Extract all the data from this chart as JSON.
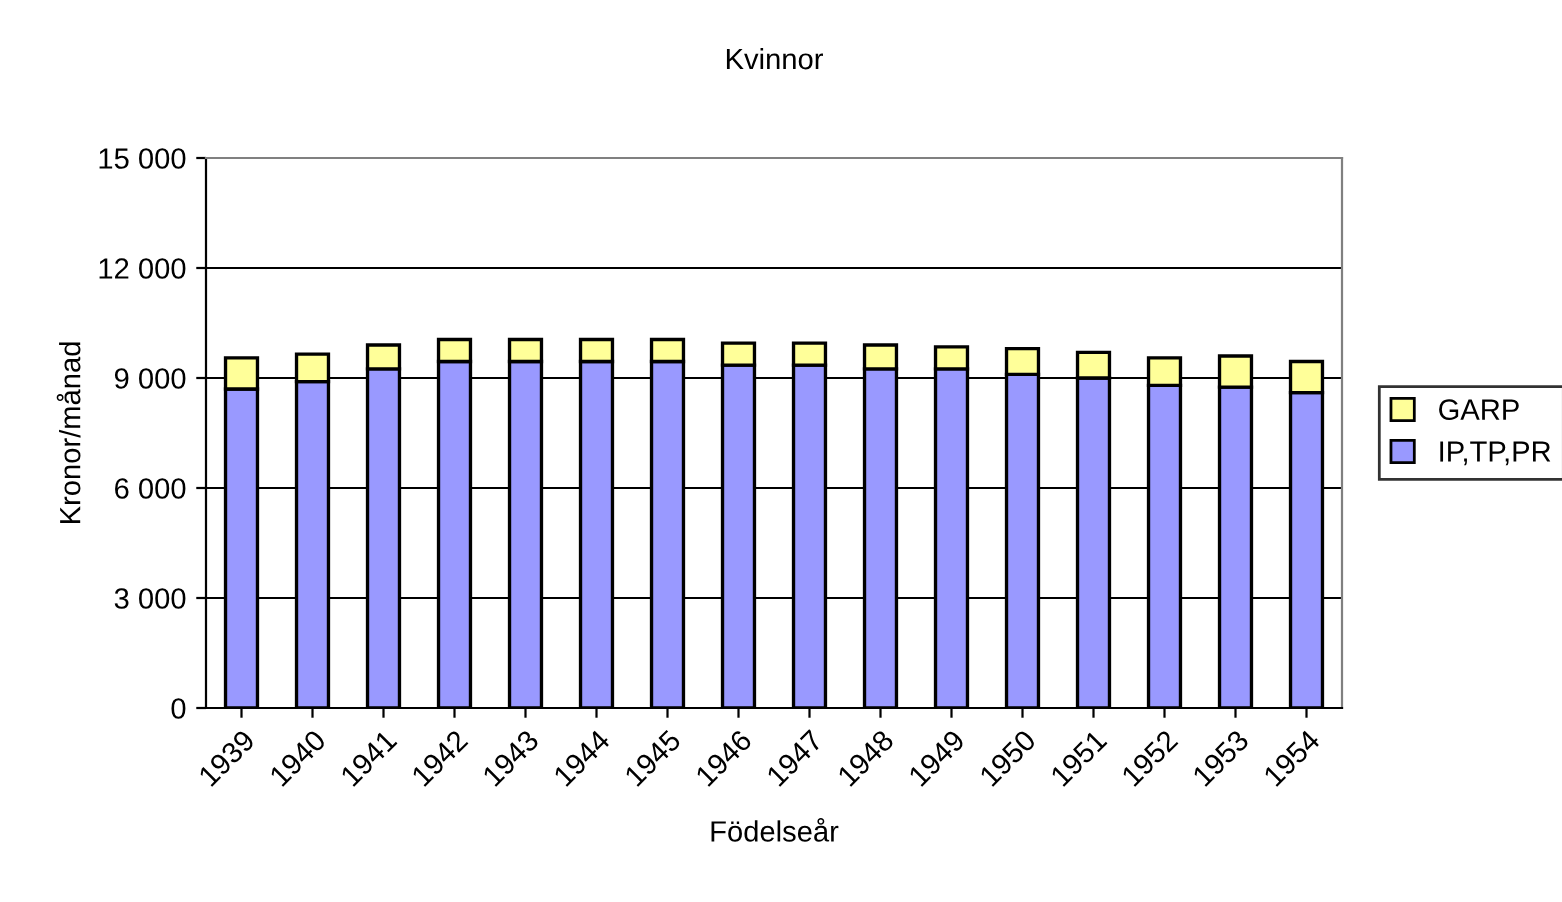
{
  "chart_data": {
    "type": "bar",
    "title": "Kvinnor",
    "xlabel": "Födelseår",
    "ylabel": "Kronor/månad",
    "stacked": true,
    "categories": [
      "1939",
      "1940",
      "1941",
      "1942",
      "1943",
      "1944",
      "1945",
      "1946",
      "1947",
      "1948",
      "1949",
      "1950",
      "1951",
      "1952",
      "1953",
      "1954"
    ],
    "series": [
      {
        "name": "IP,TP,PR",
        "color": "#9999ff",
        "values": [
          8700,
          8900,
          9250,
          9450,
          9450,
          9450,
          9450,
          9350,
          9350,
          9250,
          9250,
          9100,
          9000,
          8800,
          8750,
          8600
        ]
      },
      {
        "name": "GARP",
        "color": "#ffff99",
        "values": [
          850,
          750,
          650,
          600,
          600,
          600,
          600,
          600,
          600,
          650,
          600,
          700,
          700,
          750,
          850,
          850
        ]
      }
    ],
    "ylim": [
      0,
      15000
    ],
    "yticks": [
      {
        "value": 0,
        "label": "0"
      },
      {
        "value": 3000,
        "label": "3 000"
      },
      {
        "value": 6000,
        "label": "6 000"
      },
      {
        "value": 9000,
        "label": "9 000"
      },
      {
        "value": 12000,
        "label": "12 000"
      },
      {
        "value": 15000,
        "label": "15 000"
      }
    ],
    "grid": "y",
    "legend": "right"
  }
}
